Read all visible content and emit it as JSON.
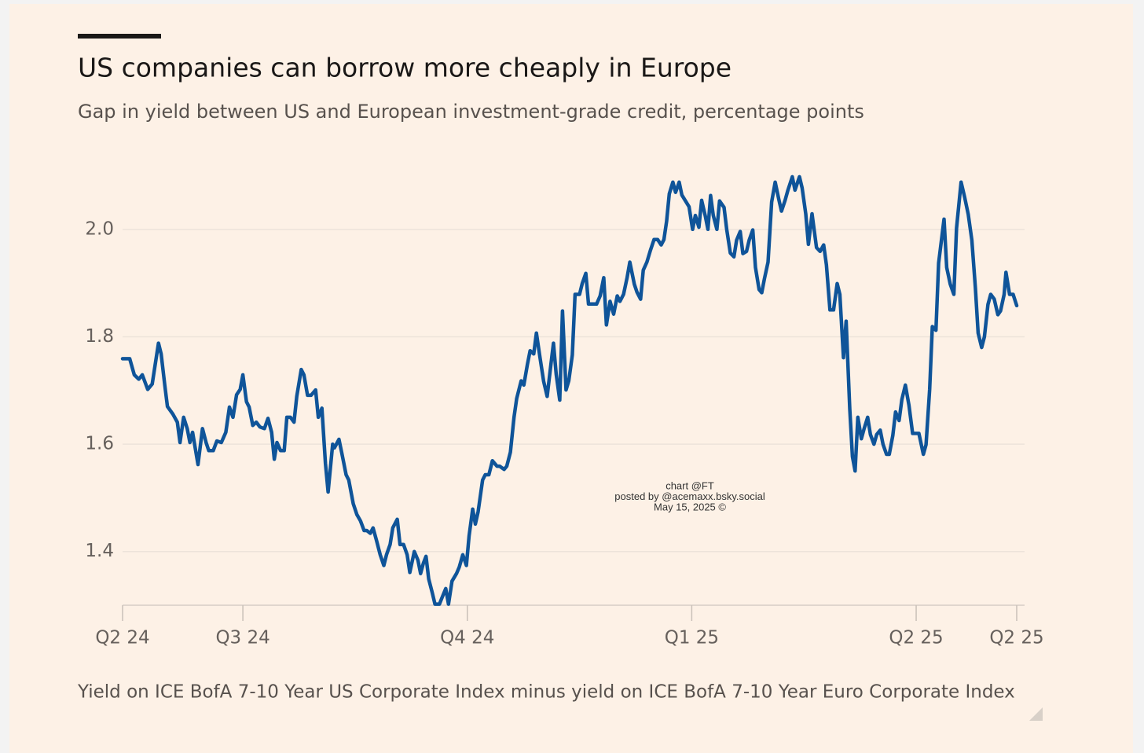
{
  "chart_data": {
    "type": "line",
    "title": "US companies can borrow more cheaply in Europe",
    "subtitle": "Gap in yield between US and European investment-grade credit, percentage points",
    "source": "Yield on ICE BofA 7-10 Year US Corporate Index minus yield on ICE BofA 7-10 Year Euro Corporate Index",
    "annotations": [
      "chart @FT",
      "posted by @acemaxx.bsky.social",
      "May 15, 2025 ©"
    ],
    "color": "#0f5499",
    "grid": true,
    "xlim": [
      2024.366,
      2025.362
    ],
    "xticks": [
      {
        "value": 2024.366,
        "label": "Q2 24"
      },
      {
        "value": 2024.5,
        "label": "Q3 24"
      },
      {
        "value": 2024.75,
        "label": "Q4 24"
      },
      {
        "value": 2025,
        "label": "Q1 25"
      },
      {
        "value": 2025.25,
        "label": "Q2 25"
      },
      {
        "value": 2025.362,
        "label": "Q2 25"
      }
    ],
    "ylim": [
      1.3,
      2.1
    ],
    "yticks": [
      1.4,
      1.6,
      1.8,
      {
        "value": 2,
        "label": "2.0"
      }
    ],
    "x": [
      2024.366,
      2024.374,
      2024.379,
      2024.384,
      2024.388,
      2024.394,
      2024.399,
      2024.406,
      2024.409,
      2024.413,
      2024.416,
      2024.422,
      2024.427,
      2024.43,
      2024.434,
      2024.438,
      2024.441,
      2024.444,
      2024.45,
      2024.455,
      2024.459,
      2024.462,
      2024.467,
      2024.471,
      2024.476,
      2024.481,
      2024.485,
      2024.489,
      2024.493,
      2024.497,
      2024.5,
      2024.504,
      2024.507,
      2024.511,
      2024.515,
      2024.519,
      2024.524,
      2024.528,
      2024.532,
      2024.535,
      2024.538,
      2024.542,
      2024.546,
      2024.549,
      2024.553,
      2024.557,
      2024.56,
      2024.565,
      2024.568,
      2024.572,
      2024.576,
      2024.581,
      2024.584,
      2024.588,
      2024.592,
      2024.595,
      2024.6,
      2024.602,
      2024.607,
      2024.61,
      2024.615,
      2024.618,
      2024.623,
      2024.627,
      2024.631,
      2024.635,
      2024.638,
      2024.642,
      2024.645,
      2024.649,
      2024.653,
      2024.657,
      2024.66,
      2024.664,
      2024.667,
      2024.672,
      2024.675,
      2024.679,
      2024.683,
      2024.686,
      2024.691,
      2024.695,
      2024.698,
      2024.701,
      2024.704,
      2024.707,
      2024.711,
      2024.714,
      2024.719,
      2024.722,
      2024.726,
      2024.729,
      2024.733,
      2024.738,
      2024.741,
      2024.745,
      2024.749,
      2024.752,
      2024.756,
      2024.759,
      2024.762,
      2024.767,
      2024.77,
      2024.774,
      2024.778,
      2024.783,
      2024.786,
      2024.791,
      2024.794,
      2024.798,
      2024.802,
      2024.805,
      2024.81,
      2024.813,
      2024.817,
      2024.82,
      2024.824,
      2024.827,
      2024.831,
      2024.835,
      2024.839,
      2024.842,
      2024.846,
      2024.849,
      2024.853,
      2024.856,
      2024.86,
      2024.863,
      2024.867,
      2024.87,
      2024.875,
      2024.878,
      2024.882,
      2024.885,
      2024.889,
      2024.894,
      2024.898,
      2024.902,
      2024.905,
      2024.909,
      2024.913,
      2024.917,
      2024.92,
      2024.924,
      2024.928,
      2024.931,
      2024.936,
      2024.939,
      2024.943,
      2024.946,
      2024.95,
      2024.954,
      2024.958,
      2024.962,
      2024.966,
      2024.969,
      2024.972,
      2024.975,
      2024.979,
      2024.982,
      2024.986,
      2024.989,
      2024.993,
      2024.997,
      2025.001,
      2025.004,
      2025.008,
      2025.011,
      2025.015,
      2025.018,
      2025.021,
      2025.024,
      2025.028,
      2025.031,
      2025.036,
      2025.039,
      2025.043,
      2025.047,
      2025.05,
      2025.054,
      2025.057,
      2025.061,
      2025.064,
      2025.068,
      2025.071,
      2025.075,
      2025.078,
      2025.081,
      2025.085,
      2025.089,
      2025.093,
      2025.097,
      2025.1,
      2025.104,
      2025.107,
      2025.112,
      2025.115,
      2025.12,
      2025.123,
      2025.127,
      2025.13,
      2025.134,
      2025.139,
      2025.143,
      2025.147,
      2025.15,
      2025.154,
      2025.158,
      2025.162,
      2025.165,
      2025.169,
      2025.172,
      2025.176,
      2025.179,
      2025.182,
      2025.185,
      2025.189,
      2025.192,
      2025.196,
      2025.199,
      2025.203,
      2025.206,
      2025.21,
      2025.213,
      2025.217,
      2025.22,
      2025.224,
      2025.227,
      2025.231,
      2025.234,
      2025.238,
      2025.242,
      2025.246,
      2025.25,
      2025.253,
      2025.258,
      2025.261,
      2025.265,
      2025.268,
      2025.272,
      2025.275,
      2025.281,
      2025.284,
      2025.288,
      2025.292,
      2025.295,
      2025.3,
      2025.304,
      2025.308,
      2025.312,
      2025.316,
      2025.319,
      2025.323,
      2025.326,
      2025.33,
      2025.333,
      2025.337,
      2025.341,
      2025.344,
      2025.348,
      2025.35,
      2025.354,
      2025.358,
      2025.362
    ],
    "values": [
      1.759,
      1.759,
      1.729,
      1.721,
      1.729,
      1.702,
      1.712,
      1.788,
      1.768,
      1.71,
      1.67,
      1.656,
      1.641,
      1.603,
      1.65,
      1.629,
      1.603,
      1.622,
      1.562,
      1.629,
      1.603,
      1.588,
      1.588,
      1.606,
      1.603,
      1.622,
      1.669,
      1.65,
      1.692,
      1.702,
      1.729,
      1.679,
      1.669,
      1.635,
      1.641,
      1.632,
      1.629,
      1.648,
      1.622,
      1.572,
      1.603,
      1.588,
      1.588,
      1.65,
      1.65,
      1.641,
      1.689,
      1.739,
      1.729,
      1.691,
      1.691,
      1.701,
      1.65,
      1.667,
      1.564,
      1.511,
      1.6,
      1.593,
      1.609,
      1.585,
      1.543,
      1.533,
      1.489,
      1.469,
      1.457,
      1.439,
      1.439,
      1.434,
      1.444,
      1.42,
      1.394,
      1.374,
      1.394,
      1.413,
      1.444,
      1.46,
      1.413,
      1.413,
      1.394,
      1.361,
      1.4,
      1.384,
      1.359,
      1.378,
      1.391,
      1.349,
      1.323,
      1.302,
      1.302,
      1.315,
      1.331,
      1.302,
      1.345,
      1.359,
      1.371,
      1.394,
      1.374,
      1.429,
      1.479,
      1.451,
      1.474,
      1.533,
      1.543,
      1.543,
      1.569,
      1.559,
      1.559,
      1.553,
      1.559,
      1.585,
      1.65,
      1.685,
      1.718,
      1.71,
      1.749,
      1.774,
      1.768,
      1.807,
      1.761,
      1.717,
      1.689,
      1.733,
      1.788,
      1.73,
      1.682,
      1.848,
      1.701,
      1.718,
      1.766,
      1.879,
      1.879,
      1.899,
      1.918,
      1.861,
      1.861,
      1.861,
      1.876,
      1.91,
      1.822,
      1.866,
      1.842,
      1.876,
      1.866,
      1.879,
      1.91,
      1.939,
      1.898,
      1.883,
      1.87,
      1.924,
      1.939,
      1.961,
      1.981,
      1.981,
      1.971,
      1.981,
      2.015,
      2.066,
      2.088,
      2.069,
      2.088,
      2.064,
      2.053,
      2.042,
      2.0,
      2.026,
      2.004,
      2.054,
      2.026,
      2.0,
      2.063,
      2.026,
      2.0,
      2.053,
      2.041,
      2.0,
      1.956,
      1.949,
      1.98,
      1.996,
      1.955,
      1.959,
      1.98,
      1.999,
      1.929,
      1.888,
      1.882,
      1.908,
      1.939,
      2.051,
      2.088,
      2.056,
      2.034,
      2.054,
      2.072,
      2.098,
      2.073,
      2.098,
      2.077,
      2.029,
      1.972,
      2.029,
      1.966,
      1.959,
      1.971,
      1.934,
      1.85,
      1.85,
      1.899,
      1.879,
      1.761,
      1.829,
      1.666,
      1.577,
      1.55,
      1.65,
      1.61,
      1.629,
      1.65,
      1.618,
      1.6,
      1.618,
      1.626,
      1.6,
      1.581,
      1.581,
      1.616,
      1.66,
      1.644,
      1.683,
      1.71,
      1.672,
      1.62,
      1.62,
      1.62,
      1.581,
      1.599,
      1.702,
      1.819,
      1.812,
      1.937,
      2.019,
      1.929,
      1.898,
      1.879,
      2.002,
      2.088,
      2.06,
      2.028,
      1.98,
      1.891,
      1.807,
      1.78,
      1.8,
      1.86,
      1.879,
      1.87,
      1.841,
      1.848,
      1.879,
      1.92,
      1.879,
      1.879,
      1.858
    ]
  }
}
